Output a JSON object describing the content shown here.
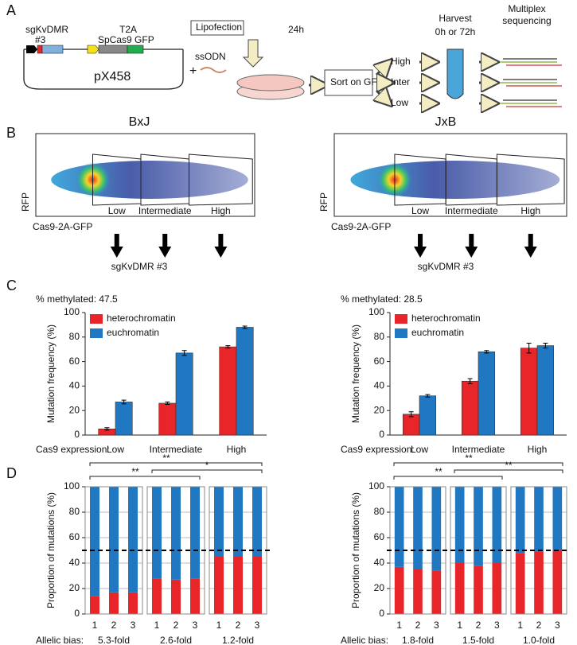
{
  "panel_labels": [
    "A",
    "B",
    "C",
    "D"
  ],
  "schematic": {
    "guide": "sgKvDMR",
    "guide_number": "#3",
    "t2a": "T2A",
    "cas9": "SpCas9 GFP",
    "plasmid": "pX458",
    "plus": "+",
    "donor": "ssODN",
    "transfection": "Lipofection",
    "incubation": "24h",
    "sort": "Sort on GFP",
    "bins": [
      "High",
      "Inter",
      "Low"
    ],
    "timepoints": "0h or 72h",
    "harvest": "Harvest",
    "sequencing": [
      "Multiplex",
      "sequencing"
    ]
  },
  "flow": [
    {
      "title": "BxJ",
      "y_label": "RFP",
      "x_label": "Cas9-2A-GFP",
      "gates": [
        "Low",
        "Intermediate",
        "High"
      ],
      "guide": "sgKvDMR #3"
    },
    {
      "title": "JxB",
      "y_label": "RFP",
      "x_label": "Cas9-2A-GFP",
      "gates": [
        "Low",
        "Intermediate",
        "High"
      ],
      "guide": "sgKvDMR #3"
    }
  ],
  "chart_data": [
    {
      "type": "bar",
      "title": "% methylated: 47.5",
      "y_label": "Mutation frequency (%)",
      "x_label": "Cas9 expression:",
      "categories": [
        "Low",
        "Intermediate",
        "High"
      ],
      "series": [
        {
          "name": "heterochromatin",
          "color": "#e8262a",
          "values": [
            5,
            26,
            72
          ],
          "errors": [
            1,
            1,
            1
          ]
        },
        {
          "name": "euchromatin",
          "color": "#1f78c1",
          "values": [
            27,
            67,
            88
          ],
          "errors": [
            1.5,
            2,
            1
          ]
        }
      ],
      "ylim": [
        0,
        100
      ],
      "yticks": [
        0,
        20,
        40,
        60,
        80,
        100
      ],
      "legend": "upper left"
    },
    {
      "type": "bar",
      "title": "% methylated: 28.5",
      "y_label": "Mutation frequency (%)",
      "x_label": "Cas9 expression:",
      "categories": [
        "Low",
        "Intermediate",
        "High"
      ],
      "series": [
        {
          "name": "heterochromatin",
          "color": "#e8262a",
          "values": [
            17,
            44,
            71
          ],
          "errors": [
            2,
            2,
            4
          ]
        },
        {
          "name": "euchromatin",
          "color": "#1f78c1",
          "values": [
            32,
            68,
            73
          ],
          "errors": [
            1,
            1,
            2
          ]
        }
      ],
      "ylim": [
        0,
        100
      ],
      "yticks": [
        0,
        20,
        40,
        60,
        80,
        100
      ],
      "legend": "upper left"
    },
    {
      "type": "stacked_bar",
      "y_label": "Proportion of mutations (%)",
      "x_label": "Allelic bias:",
      "categories": [
        "1",
        "2",
        "3",
        "1",
        "2",
        "3",
        "1",
        "2",
        "3"
      ],
      "groups": [
        "5.3-fold",
        "2.6-fold",
        "1.2-fold"
      ],
      "series": [
        {
          "color": "#e8262a",
          "values": [
            14,
            17,
            17,
            28,
            27,
            28,
            45,
            45,
            45
          ]
        },
        {
          "color": "#1f78c1",
          "values": [
            86,
            83,
            83,
            72,
            73,
            72,
            55,
            55,
            55
          ]
        }
      ],
      "ylim": [
        0,
        100
      ],
      "yticks": [
        0,
        20,
        40,
        60,
        80,
        100
      ],
      "grid": true,
      "reference_line": 50,
      "significance": [
        "**",
        "**",
        "*"
      ]
    },
    {
      "type": "stacked_bar",
      "y_label": "Proportion of mutations (%)",
      "x_label": "Allelic bias:",
      "categories": [
        "1",
        "2",
        "3",
        "1",
        "2",
        "3",
        "1",
        "2",
        "3"
      ],
      "groups": [
        "1.8-fold",
        "1.5-fold",
        "1.0-fold"
      ],
      "series": [
        {
          "color": "#e8262a",
          "values": [
            37,
            35,
            34,
            40,
            38,
            40,
            48,
            49,
            50
          ]
        },
        {
          "color": "#1f78c1",
          "values": [
            63,
            65,
            66,
            60,
            62,
            60,
            52,
            51,
            50
          ]
        }
      ],
      "ylim": [
        0,
        100
      ],
      "yticks": [
        0,
        20,
        40,
        60,
        80,
        100
      ],
      "grid": true,
      "reference_line": 50,
      "significance": [
        "**",
        "**",
        "**"
      ]
    }
  ]
}
